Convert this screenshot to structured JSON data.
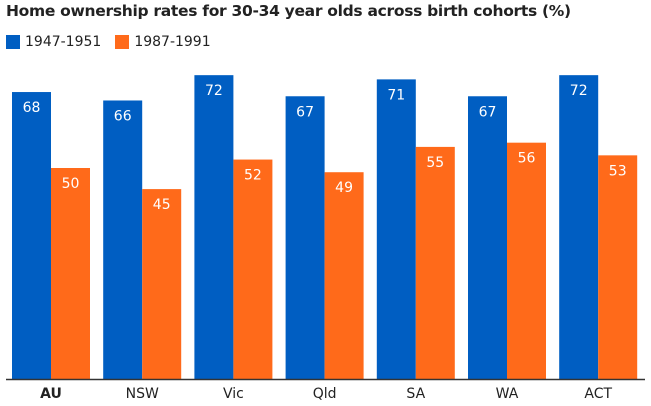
{
  "chart_data": {
    "type": "bar",
    "title": "Home ownership rates for 30-34 year olds across birth cohorts (%)",
    "categories": [
      "AU",
      "NSW",
      "Vic",
      "Qld",
      "SA",
      "WA",
      "ACT"
    ],
    "highlight_category": "AU",
    "series": [
      {
        "name": "1947-1951",
        "color": "#005ec2",
        "values": [
          68,
          66,
          72,
          67,
          71,
          67,
          72
        ]
      },
      {
        "name": "1987-1991",
        "color": "#ff6a1a",
        "values": [
          50,
          45,
          52,
          49,
          55,
          56,
          53
        ]
      }
    ],
    "ylim": [
      0,
      100
    ],
    "grid": false,
    "legend_position": "top-left"
  }
}
